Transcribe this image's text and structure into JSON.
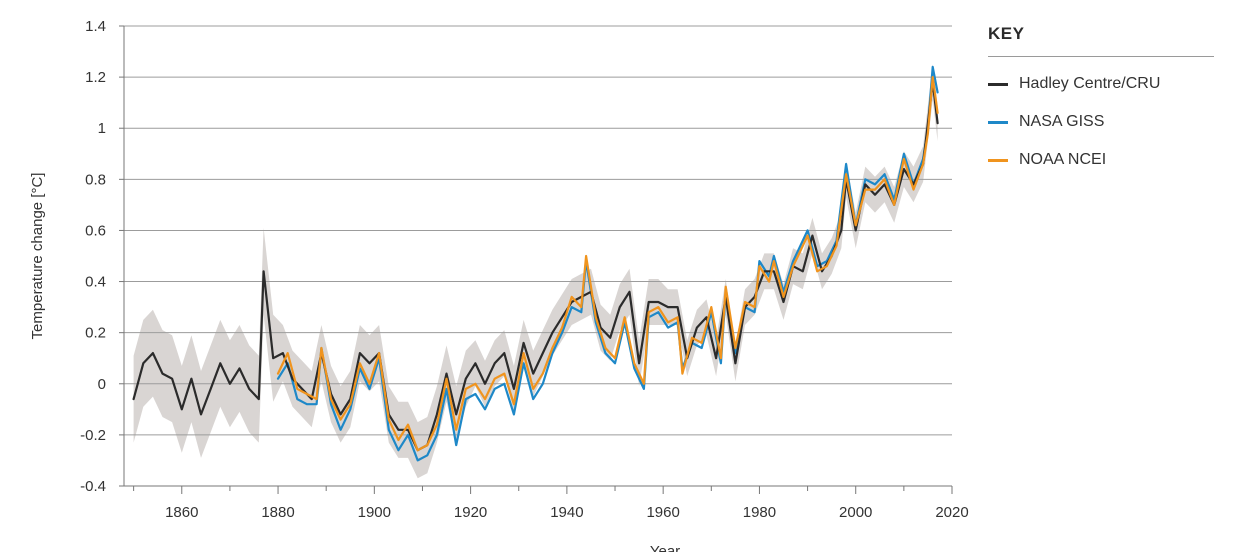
{
  "key": {
    "title": "KEY",
    "items": [
      {
        "label": "Hadley Centre/CRU",
        "color": "#2b2b2b"
      },
      {
        "label": "NASA GISS",
        "color": "#1e88c8"
      },
      {
        "label": "NOAA NCEI",
        "color": "#f0941e"
      }
    ]
  },
  "chart_data": {
    "type": "line",
    "title": "",
    "xlabel": "Year",
    "ylabel": "Temperature change [°C]",
    "xlim": [
      1848,
      2020
    ],
    "ylim": [
      -0.4,
      1.4
    ],
    "grid": true,
    "legend_position": "right",
    "x_ticks": [
      "1860",
      "1880",
      "1900",
      "1920",
      "1940",
      "1960",
      "1980",
      "2000",
      "2020"
    ],
    "y_ticks": [
      "-0.4",
      "-0.2",
      "0",
      "0.2",
      "0.4",
      "0.6",
      "0.8",
      "1",
      "1.2",
      "1.4"
    ],
    "uncertainty_band_color": "#d9d5d3",
    "series": [
      {
        "name": "Hadley Centre/CRU",
        "color": "#2b2b2b",
        "points": [
          [
            1850,
            -0.06
          ],
          [
            1852,
            0.08
          ],
          [
            1854,
            0.12
          ],
          [
            1856,
            0.04
          ],
          [
            1858,
            0.02
          ],
          [
            1860,
            -0.1
          ],
          [
            1862,
            0.02
          ],
          [
            1864,
            -0.12
          ],
          [
            1866,
            -0.02
          ],
          [
            1868,
            0.08
          ],
          [
            1870,
            0.0
          ],
          [
            1872,
            0.06
          ],
          [
            1874,
            -0.02
          ],
          [
            1876,
            -0.06
          ],
          [
            1877,
            0.44
          ],
          [
            1879,
            0.1
          ],
          [
            1881,
            0.12
          ],
          [
            1883,
            0.02
          ],
          [
            1885,
            -0.02
          ],
          [
            1887,
            -0.06
          ],
          [
            1889,
            0.12
          ],
          [
            1891,
            -0.04
          ],
          [
            1893,
            -0.12
          ],
          [
            1895,
            -0.06
          ],
          [
            1897,
            0.12
          ],
          [
            1899,
            0.08
          ],
          [
            1901,
            0.12
          ],
          [
            1903,
            -0.12
          ],
          [
            1905,
            -0.18
          ],
          [
            1907,
            -0.18
          ],
          [
            1909,
            -0.26
          ],
          [
            1911,
            -0.24
          ],
          [
            1913,
            -0.12
          ],
          [
            1915,
            0.04
          ],
          [
            1917,
            -0.12
          ],
          [
            1919,
            0.02
          ],
          [
            1921,
            0.08
          ],
          [
            1923,
            0.0
          ],
          [
            1925,
            0.08
          ],
          [
            1927,
            0.12
          ],
          [
            1929,
            -0.02
          ],
          [
            1931,
            0.16
          ],
          [
            1933,
            0.04
          ],
          [
            1935,
            0.12
          ],
          [
            1937,
            0.2
          ],
          [
            1939,
            0.26
          ],
          [
            1941,
            0.32
          ],
          [
            1943,
            0.34
          ],
          [
            1945,
            0.36
          ],
          [
            1947,
            0.22
          ],
          [
            1949,
            0.18
          ],
          [
            1951,
            0.3
          ],
          [
            1953,
            0.36
          ],
          [
            1955,
            0.08
          ],
          [
            1957,
            0.32
          ],
          [
            1959,
            0.32
          ],
          [
            1961,
            0.3
          ],
          [
            1963,
            0.3
          ],
          [
            1965,
            0.1
          ],
          [
            1967,
            0.22
          ],
          [
            1969,
            0.26
          ],
          [
            1971,
            0.1
          ],
          [
            1973,
            0.34
          ],
          [
            1975,
            0.08
          ],
          [
            1977,
            0.3
          ],
          [
            1979,
            0.34
          ],
          [
            1981,
            0.44
          ],
          [
            1983,
            0.44
          ],
          [
            1985,
            0.32
          ],
          [
            1987,
            0.46
          ],
          [
            1989,
            0.44
          ],
          [
            1991,
            0.58
          ],
          [
            1993,
            0.44
          ],
          [
            1995,
            0.5
          ],
          [
            1997,
            0.6
          ],
          [
            1998,
            0.8
          ],
          [
            2000,
            0.6
          ],
          [
            2002,
            0.78
          ],
          [
            2004,
            0.74
          ],
          [
            2006,
            0.78
          ],
          [
            2008,
            0.7
          ],
          [
            2010,
            0.84
          ],
          [
            2012,
            0.78
          ],
          [
            2014,
            0.86
          ],
          [
            2015,
            1.02
          ],
          [
            2016,
            1.18
          ],
          [
            2017,
            1.02
          ]
        ]
      },
      {
        "name": "NASA GISS",
        "color": "#1e88c8",
        "points": [
          [
            1880,
            0.02
          ],
          [
            1882,
            0.08
          ],
          [
            1884,
            -0.06
          ],
          [
            1886,
            -0.08
          ],
          [
            1888,
            -0.08
          ],
          [
            1889,
            0.14
          ],
          [
            1891,
            -0.08
          ],
          [
            1893,
            -0.18
          ],
          [
            1895,
            -0.1
          ],
          [
            1897,
            0.06
          ],
          [
            1899,
            -0.02
          ],
          [
            1901,
            0.1
          ],
          [
            1903,
            -0.18
          ],
          [
            1905,
            -0.26
          ],
          [
            1907,
            -0.2
          ],
          [
            1909,
            -0.3
          ],
          [
            1911,
            -0.28
          ],
          [
            1913,
            -0.2
          ],
          [
            1915,
            -0.02
          ],
          [
            1917,
            -0.24
          ],
          [
            1919,
            -0.06
          ],
          [
            1921,
            -0.04
          ],
          [
            1923,
            -0.1
          ],
          [
            1925,
            -0.02
          ],
          [
            1927,
            0.0
          ],
          [
            1929,
            -0.12
          ],
          [
            1931,
            0.08
          ],
          [
            1933,
            -0.06
          ],
          [
            1935,
            0.0
          ],
          [
            1937,
            0.12
          ],
          [
            1939,
            0.2
          ],
          [
            1941,
            0.3
          ],
          [
            1943,
            0.28
          ],
          [
            1944,
            0.48
          ],
          [
            1946,
            0.24
          ],
          [
            1948,
            0.12
          ],
          [
            1950,
            0.08
          ],
          [
            1952,
            0.24
          ],
          [
            1954,
            0.06
          ],
          [
            1956,
            -0.02
          ],
          [
            1957,
            0.26
          ],
          [
            1959,
            0.28
          ],
          [
            1961,
            0.22
          ],
          [
            1963,
            0.24
          ],
          [
            1964,
            0.06
          ],
          [
            1966,
            0.16
          ],
          [
            1968,
            0.14
          ],
          [
            1970,
            0.28
          ],
          [
            1972,
            0.08
          ],
          [
            1973,
            0.36
          ],
          [
            1975,
            0.12
          ],
          [
            1977,
            0.3
          ],
          [
            1979,
            0.28
          ],
          [
            1980,
            0.48
          ],
          [
            1982,
            0.42
          ],
          [
            1983,
            0.5
          ],
          [
            1985,
            0.36
          ],
          [
            1987,
            0.48
          ],
          [
            1988,
            0.52
          ],
          [
            1990,
            0.6
          ],
          [
            1992,
            0.46
          ],
          [
            1994,
            0.48
          ],
          [
            1996,
            0.56
          ],
          [
            1998,
            0.86
          ],
          [
            2000,
            0.62
          ],
          [
            2002,
            0.8
          ],
          [
            2004,
            0.78
          ],
          [
            2006,
            0.82
          ],
          [
            2008,
            0.72
          ],
          [
            2010,
            0.9
          ],
          [
            2012,
            0.78
          ],
          [
            2014,
            0.88
          ],
          [
            2015,
            1.0
          ],
          [
            2016,
            1.24
          ],
          [
            2017,
            1.14
          ]
        ]
      },
      {
        "name": "NOAA NCEI",
        "color": "#f0941e",
        "points": [
          [
            1880,
            0.04
          ],
          [
            1882,
            0.12
          ],
          [
            1884,
            -0.02
          ],
          [
            1886,
            -0.04
          ],
          [
            1888,
            -0.06
          ],
          [
            1889,
            0.14
          ],
          [
            1891,
            -0.06
          ],
          [
            1893,
            -0.14
          ],
          [
            1895,
            -0.08
          ],
          [
            1897,
            0.08
          ],
          [
            1899,
            0.0
          ],
          [
            1901,
            0.12
          ],
          [
            1903,
            -0.14
          ],
          [
            1905,
            -0.22
          ],
          [
            1907,
            -0.16
          ],
          [
            1909,
            -0.26
          ],
          [
            1911,
            -0.24
          ],
          [
            1913,
            -0.16
          ],
          [
            1915,
            0.02
          ],
          [
            1917,
            -0.18
          ],
          [
            1919,
            -0.02
          ],
          [
            1921,
            0.0
          ],
          [
            1923,
            -0.06
          ],
          [
            1925,
            0.02
          ],
          [
            1927,
            0.04
          ],
          [
            1929,
            -0.08
          ],
          [
            1931,
            0.12
          ],
          [
            1933,
            -0.02
          ],
          [
            1935,
            0.04
          ],
          [
            1937,
            0.14
          ],
          [
            1939,
            0.22
          ],
          [
            1941,
            0.34
          ],
          [
            1943,
            0.3
          ],
          [
            1944,
            0.5
          ],
          [
            1946,
            0.26
          ],
          [
            1948,
            0.14
          ],
          [
            1950,
            0.1
          ],
          [
            1952,
            0.26
          ],
          [
            1954,
            0.08
          ],
          [
            1956,
            0.0
          ],
          [
            1957,
            0.28
          ],
          [
            1959,
            0.3
          ],
          [
            1961,
            0.24
          ],
          [
            1963,
            0.26
          ],
          [
            1964,
            0.04
          ],
          [
            1966,
            0.18
          ],
          [
            1968,
            0.16
          ],
          [
            1970,
            0.3
          ],
          [
            1972,
            0.1
          ],
          [
            1973,
            0.38
          ],
          [
            1975,
            0.14
          ],
          [
            1977,
            0.32
          ],
          [
            1979,
            0.3
          ],
          [
            1980,
            0.46
          ],
          [
            1982,
            0.4
          ],
          [
            1983,
            0.48
          ],
          [
            1985,
            0.34
          ],
          [
            1987,
            0.46
          ],
          [
            1988,
            0.5
          ],
          [
            1990,
            0.58
          ],
          [
            1992,
            0.44
          ],
          [
            1994,
            0.46
          ],
          [
            1996,
            0.54
          ],
          [
            1998,
            0.82
          ],
          [
            2000,
            0.62
          ],
          [
            2002,
            0.76
          ],
          [
            2004,
            0.76
          ],
          [
            2006,
            0.8
          ],
          [
            2008,
            0.7
          ],
          [
            2010,
            0.88
          ],
          [
            2012,
            0.76
          ],
          [
            2014,
            0.86
          ],
          [
            2015,
            0.98
          ],
          [
            2016,
            1.2
          ],
          [
            2017,
            1.06
          ]
        ]
      }
    ]
  }
}
